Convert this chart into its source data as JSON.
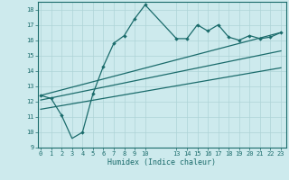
{
  "xlabel": "Humidex (Indice chaleur)",
  "bg_color": "#cdeaed",
  "grid_color": "#aed4d7",
  "line_color": "#1a6b6b",
  "ylim": [
    9,
    18.5
  ],
  "xlim": [
    -0.3,
    23.5
  ],
  "yticks": [
    9,
    10,
    11,
    12,
    13,
    14,
    15,
    16,
    17,
    18
  ],
  "xticks": [
    0,
    1,
    2,
    3,
    4,
    5,
    6,
    7,
    8,
    9,
    10,
    13,
    14,
    15,
    16,
    17,
    18,
    19,
    20,
    21,
    22,
    23
  ],
  "series1_x": [
    0,
    1,
    2,
    3,
    4,
    5,
    6,
    7,
    8,
    9,
    10,
    13,
    14,
    15,
    16,
    17,
    18,
    19,
    20,
    21,
    22,
    23
  ],
  "series1_y": [
    12.4,
    12.2,
    11.1,
    9.6,
    10.0,
    12.5,
    14.3,
    15.8,
    16.3,
    17.4,
    18.3,
    16.1,
    16.1,
    17.0,
    16.6,
    17.0,
    16.2,
    16.0,
    16.3,
    16.1,
    16.2,
    16.5
  ],
  "marker_x": [
    0,
    1,
    2,
    4,
    5,
    6,
    7,
    8,
    9,
    10,
    13,
    14,
    15,
    16,
    17,
    18,
    19,
    20,
    21,
    22,
    23
  ],
  "marker_y": [
    12.4,
    12.2,
    11.1,
    10.0,
    12.5,
    14.3,
    15.8,
    16.3,
    17.4,
    18.3,
    16.1,
    16.1,
    17.0,
    16.6,
    17.0,
    16.2,
    16.0,
    16.3,
    16.1,
    16.2,
    16.5
  ],
  "series2_x": [
    0,
    23
  ],
  "series2_y": [
    12.4,
    16.5
  ],
  "series3_x": [
    0,
    23
  ],
  "series3_y": [
    12.1,
    15.3
  ],
  "series4_x": [
    0,
    23
  ],
  "series4_y": [
    11.5,
    14.2
  ]
}
